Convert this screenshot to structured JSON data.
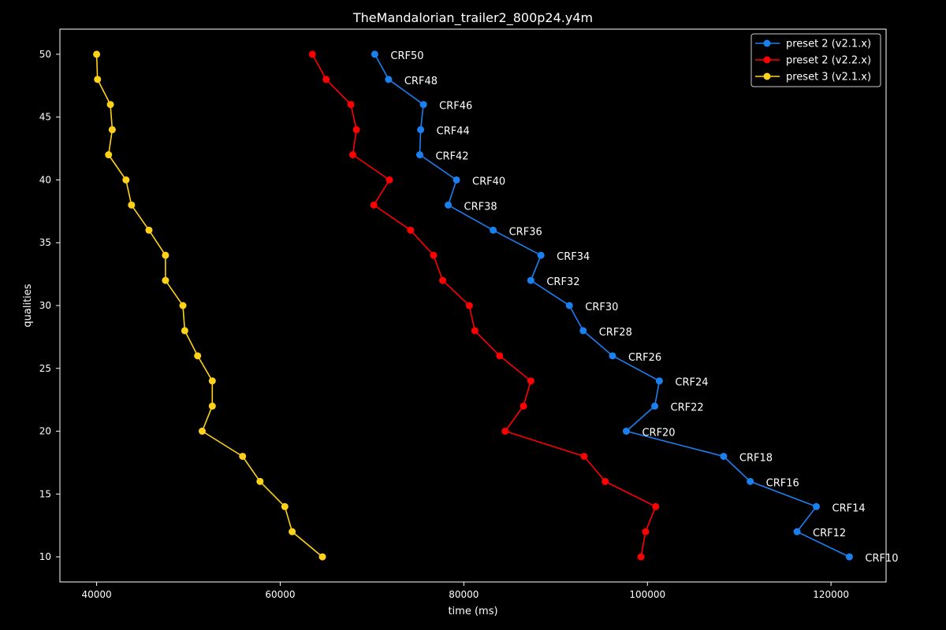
{
  "chart_data": {
    "type": "line",
    "title": "TheMandalorian_trailer2_800p24.y4m",
    "xlabel": "time (ms)",
    "ylabel": "qualities",
    "xlim": [
      36000,
      126000
    ],
    "ylim": [
      8,
      52
    ],
    "xticks": [
      40000,
      60000,
      80000,
      100000,
      120000
    ],
    "xtick_labels": [
      "40000",
      "60000",
      "80000",
      "100000",
      "120000"
    ],
    "yticks": [
      10,
      15,
      20,
      25,
      30,
      35,
      40,
      45,
      50
    ],
    "ytick_labels": [
      "10",
      "15",
      "20",
      "25",
      "30",
      "35",
      "40",
      "45",
      "50"
    ],
    "grid": false,
    "legend_position": "top-right",
    "y": [
      50,
      48,
      46,
      44,
      42,
      40,
      38,
      36,
      34,
      32,
      30,
      28,
      26,
      24,
      22,
      20,
      18,
      16,
      14,
      12,
      10
    ],
    "series": [
      {
        "name": "preset 2 (v2.1.x)",
        "color": "#1a80f0",
        "x": [
          70300,
          71800,
          75600,
          75300,
          75200,
          79200,
          78300,
          83200,
          88400,
          87300,
          91500,
          93000,
          96200,
          101300,
          100800,
          97700,
          108300,
          111200,
          118400,
          116300,
          122000
        ]
      },
      {
        "name": "preset 2 (v2.2.x)",
        "color": "#ff0000",
        "x": [
          63500,
          65000,
          67700,
          68300,
          67900,
          71900,
          70200,
          74200,
          76700,
          77700,
          80600,
          81200,
          83900,
          87300,
          86500,
          84500,
          93100,
          95400,
          100900,
          99800,
          99300
        ]
      },
      {
        "name": "preset 3 (v2.1.x)",
        "color": "#ffd21a",
        "x": [
          40000,
          40100,
          41500,
          41700,
          41300,
          43200,
          43800,
          45700,
          47500,
          47500,
          49400,
          49600,
          51000,
          52600,
          52600,
          51500,
          55900,
          57800,
          60500,
          61300,
          64600
        ]
      }
    ],
    "annotations": [
      {
        "text": "CRF50",
        "x": 70300,
        "y": 50
      },
      {
        "text": "CRF48",
        "x": 71800,
        "y": 48
      },
      {
        "text": "CRF46",
        "x": 75600,
        "y": 46
      },
      {
        "text": "CRF44",
        "x": 75300,
        "y": 44
      },
      {
        "text": "CRF42",
        "x": 75200,
        "y": 42
      },
      {
        "text": "CRF40",
        "x": 79200,
        "y": 40
      },
      {
        "text": "CRF38",
        "x": 78300,
        "y": 38
      },
      {
        "text": "CRF36",
        "x": 83200,
        "y": 36
      },
      {
        "text": "CRF34",
        "x": 88400,
        "y": 34
      },
      {
        "text": "CRF32",
        "x": 87300,
        "y": 32
      },
      {
        "text": "CRF30",
        "x": 91500,
        "y": 30
      },
      {
        "text": "CRF28",
        "x": 93000,
        "y": 28
      },
      {
        "text": "CRF26",
        "x": 96200,
        "y": 26
      },
      {
        "text": "CRF24",
        "x": 101300,
        "y": 24
      },
      {
        "text": "CRF22",
        "x": 100800,
        "y": 22
      },
      {
        "text": "CRF20",
        "x": 97700,
        "y": 20
      },
      {
        "text": "CRF18",
        "x": 108300,
        "y": 18
      },
      {
        "text": "CRF16",
        "x": 111200,
        "y": 16
      },
      {
        "text": "CRF14",
        "x": 118400,
        "y": 14
      },
      {
        "text": "CRF12",
        "x": 116300,
        "y": 12
      },
      {
        "text": "CRF10",
        "x": 122000,
        "y": 10
      }
    ]
  }
}
